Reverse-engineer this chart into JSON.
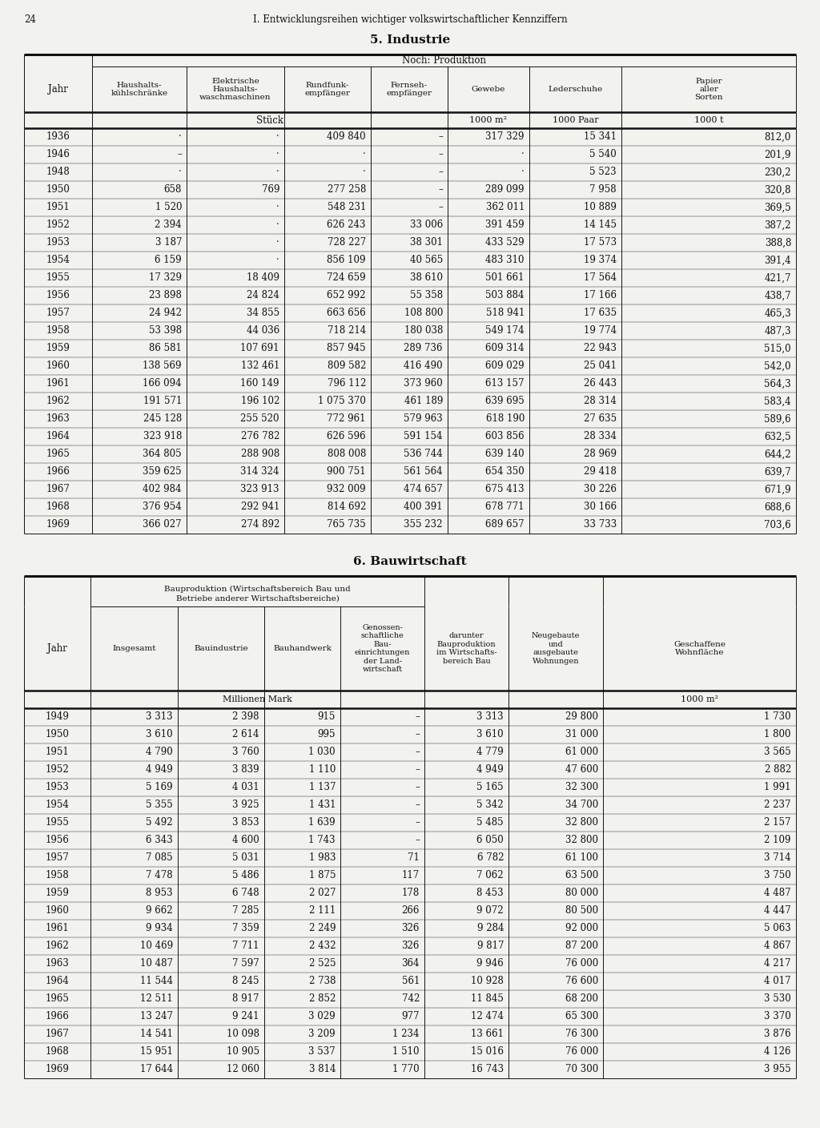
{
  "page_number": "24",
  "page_header": "I. Entwicklungsreihen wichtiger volkswirtschaftlicher Kennziffern",
  "section1_title": "5. Industrie",
  "section2_title": "6. Bauwirtschaft",
  "bg_color": "#f2f2ee",
  "text_color": "#111111",
  "line_color": "#111111",
  "section1_data": [
    [
      "1936",
      "·",
      "·",
      "409 840",
      "–",
      "317 329",
      "15 341",
      "812,0"
    ],
    [
      "1946",
      "–",
      "·",
      "·",
      "–",
      "·",
      "5 540",
      "201,9"
    ],
    [
      "1948",
      "·",
      "·",
      "·",
      "–",
      "·",
      "5 523",
      "230,2"
    ],
    [
      "1950",
      "658",
      "769",
      "277 258",
      "–",
      "289 099",
      "7 958",
      "320,8"
    ],
    [
      "1951",
      "1 520",
      "·",
      "548 231",
      "–",
      "362 011",
      "10 889",
      "369,5"
    ],
    [
      "1952",
      "2 394",
      "·",
      "626 243",
      "33 006",
      "391 459",
      "14 145",
      "387,2"
    ],
    [
      "1953",
      "3 187",
      "·",
      "728 227",
      "38 301",
      "433 529",
      "17 573",
      "388,8"
    ],
    [
      "1954",
      "6 159",
      "·",
      "856 109",
      "40 565",
      "483 310",
      "19 374",
      "391,4"
    ],
    [
      "1955",
      "17 329",
      "18 409",
      "724 659",
      "38 610",
      "501 661",
      "17 564",
      "421,7"
    ],
    [
      "1956",
      "23 898",
      "24 824",
      "652 992",
      "55 358",
      "503 884",
      "17 166",
      "438,7"
    ],
    [
      "1957",
      "24 942",
      "34 855",
      "663 656",
      "108 800",
      "518 941",
      "17 635",
      "465,3"
    ],
    [
      "1958",
      "53 398",
      "44 036",
      "718 214",
      "180 038",
      "549 174",
      "19 774",
      "487,3"
    ],
    [
      "1959",
      "86 581",
      "107 691",
      "857 945",
      "289 736",
      "609 314",
      "22 943",
      "515,0"
    ],
    [
      "1960",
      "138 569",
      "132 461",
      "809 582",
      "416 490",
      "609 029",
      "25 041",
      "542,0"
    ],
    [
      "1961",
      "166 094",
      "160 149",
      "796 112",
      "373 960",
      "613 157",
      "26 443",
      "564,3"
    ],
    [
      "1962",
      "191 571",
      "196 102",
      "1 075 370",
      "461 189",
      "639 695",
      "28 314",
      "583,4"
    ],
    [
      "1963",
      "245 128",
      "255 520",
      "772 961",
      "579 963",
      "618 190",
      "27 635",
      "589,6"
    ],
    [
      "1964",
      "323 918",
      "276 782",
      "626 596",
      "591 154",
      "603 856",
      "28 334",
      "632,5"
    ],
    [
      "1965",
      "364 805",
      "288 908",
      "808 008",
      "536 744",
      "639 140",
      "28 969",
      "644,2"
    ],
    [
      "1966",
      "359 625",
      "314 324",
      "900 751",
      "561 564",
      "654 350",
      "29 418",
      "639,7"
    ],
    [
      "1967",
      "402 984",
      "323 913",
      "932 009",
      "474 657",
      "675 413",
      "30 226",
      "671,9"
    ],
    [
      "1968",
      "376 954",
      "292 941",
      "814 692",
      "400 391",
      "678 771",
      "30 166",
      "688,6"
    ],
    [
      "1969",
      "366 027",
      "274 892",
      "765 735",
      "355 232",
      "689 657",
      "33 733",
      "703,6"
    ]
  ],
  "section2_data": [
    [
      "1949",
      "3 313",
      "2 398",
      "915",
      "–",
      "3 313",
      "29 800",
      "1 730"
    ],
    [
      "1950",
      "3 610",
      "2 614",
      "995",
      "–",
      "3 610",
      "31 000",
      "1 800"
    ],
    [
      "1951",
      "4 790",
      "3 760",
      "1 030",
      "–",
      "4 779",
      "61 000",
      "3 565"
    ],
    [
      "1952",
      "4 949",
      "3 839",
      "1 110",
      "–",
      "4 949",
      "47 600",
      "2 882"
    ],
    [
      "1953",
      "5 169",
      "4 031",
      "1 137",
      "–",
      "5 165",
      "32 300",
      "1 991"
    ],
    [
      "1954",
      "5 355",
      "3 925",
      "1 431",
      "–",
      "5 342",
      "34 700",
      "2 237"
    ],
    [
      "1955",
      "5 492",
      "3 853",
      "1 639",
      "–",
      "5 485",
      "32 800",
      "2 157"
    ],
    [
      "1956",
      "6 343",
      "4 600",
      "1 743",
      "–",
      "6 050",
      "32 800",
      "2 109"
    ],
    [
      "1957",
      "7 085",
      "5 031",
      "1 983",
      "71",
      "6 782",
      "61 100",
      "3 714"
    ],
    [
      "1958",
      "7 478",
      "5 486",
      "1 875",
      "117",
      "7 062",
      "63 500",
      "3 750"
    ],
    [
      "1959",
      "8 953",
      "6 748",
      "2 027",
      "178",
      "8 453",
      "80 000",
      "4 487"
    ],
    [
      "1960",
      "9 662",
      "7 285",
      "2 111",
      "266",
      "9 072",
      "80 500",
      "4 447"
    ],
    [
      "1961",
      "9 934",
      "7 359",
      "2 249",
      "326",
      "9 284",
      "92 000",
      "5 063"
    ],
    [
      "1962",
      "10 469",
      "7 711",
      "2 432",
      "326",
      "9 817",
      "87 200",
      "4 867"
    ],
    [
      "1963",
      "10 487",
      "7 597",
      "2 525",
      "364",
      "9 946",
      "76 000",
      "4 217"
    ],
    [
      "1964",
      "11 544",
      "8 245",
      "2 738",
      "561",
      "10 928",
      "76 600",
      "4 017"
    ],
    [
      "1965",
      "12 511",
      "8 917",
      "2 852",
      "742",
      "11 845",
      "68 200",
      "3 530"
    ],
    [
      "1966",
      "13 247",
      "9 241",
      "3 029",
      "977",
      "12 474",
      "65 300",
      "3 370"
    ],
    [
      "1967",
      "14 541",
      "10 098",
      "3 209",
      "1 234",
      "13 661",
      "76 300",
      "3 876"
    ],
    [
      "1968",
      "15 951",
      "10 905",
      "3 537",
      "1 510",
      "15 016",
      "76 000",
      "4 126"
    ],
    [
      "1969",
      "17 644",
      "12 060",
      "3 814",
      "1 770",
      "16 743",
      "70 300",
      "3 955"
    ]
  ]
}
